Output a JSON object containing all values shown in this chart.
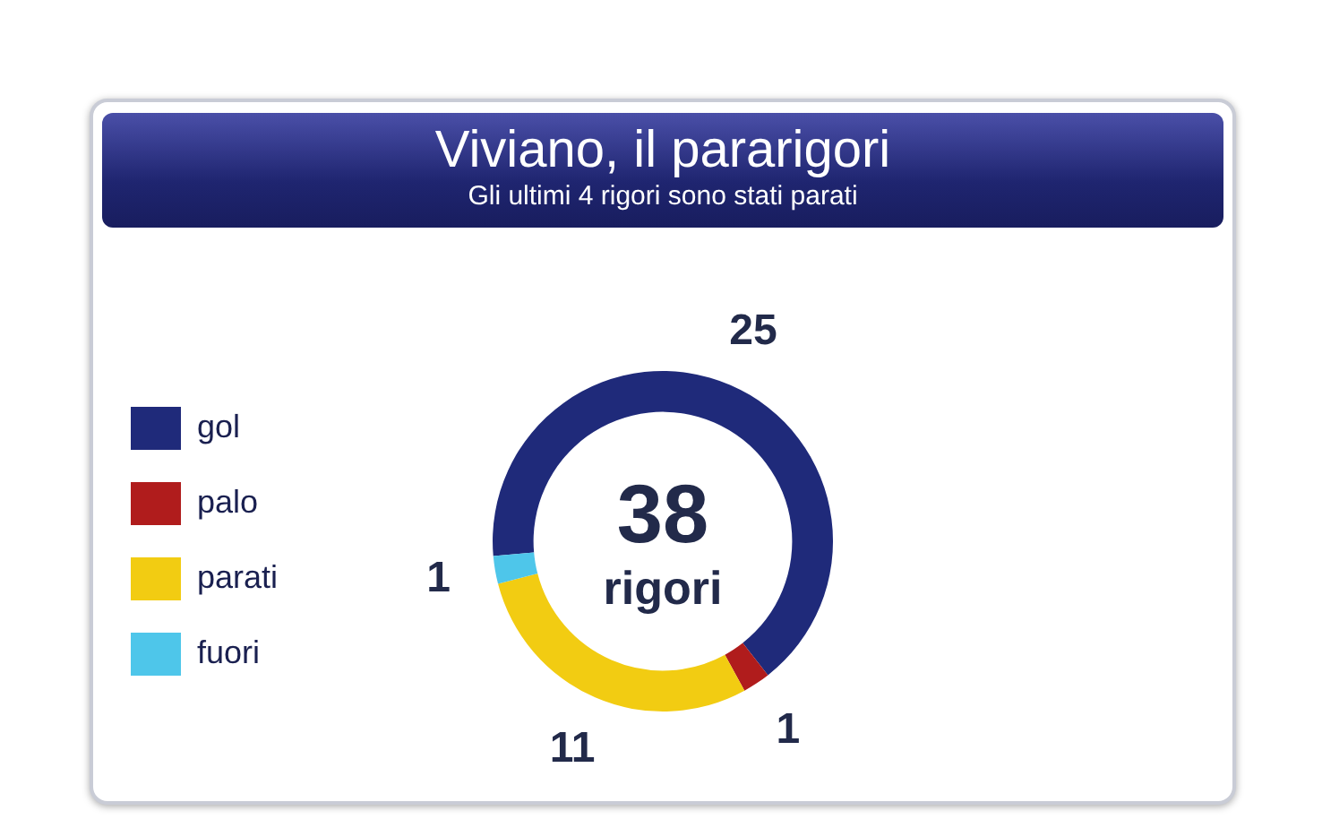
{
  "chart_data": {
    "type": "donut",
    "title": "Viviano, il pararigori",
    "subtitle": "Gli ultimi 4 rigori sono stati parati",
    "categories": [
      "gol",
      "palo",
      "parati",
      "fuori"
    ],
    "values": [
      25,
      1,
      11,
      1
    ],
    "colors": [
      "#1f2a7a",
      "#b01c1c",
      "#f2cc12",
      "#4ec6ea"
    ],
    "annotations": [
      "38",
      "rigori"
    ],
    "data_labels": true,
    "legend": "left"
  }
}
